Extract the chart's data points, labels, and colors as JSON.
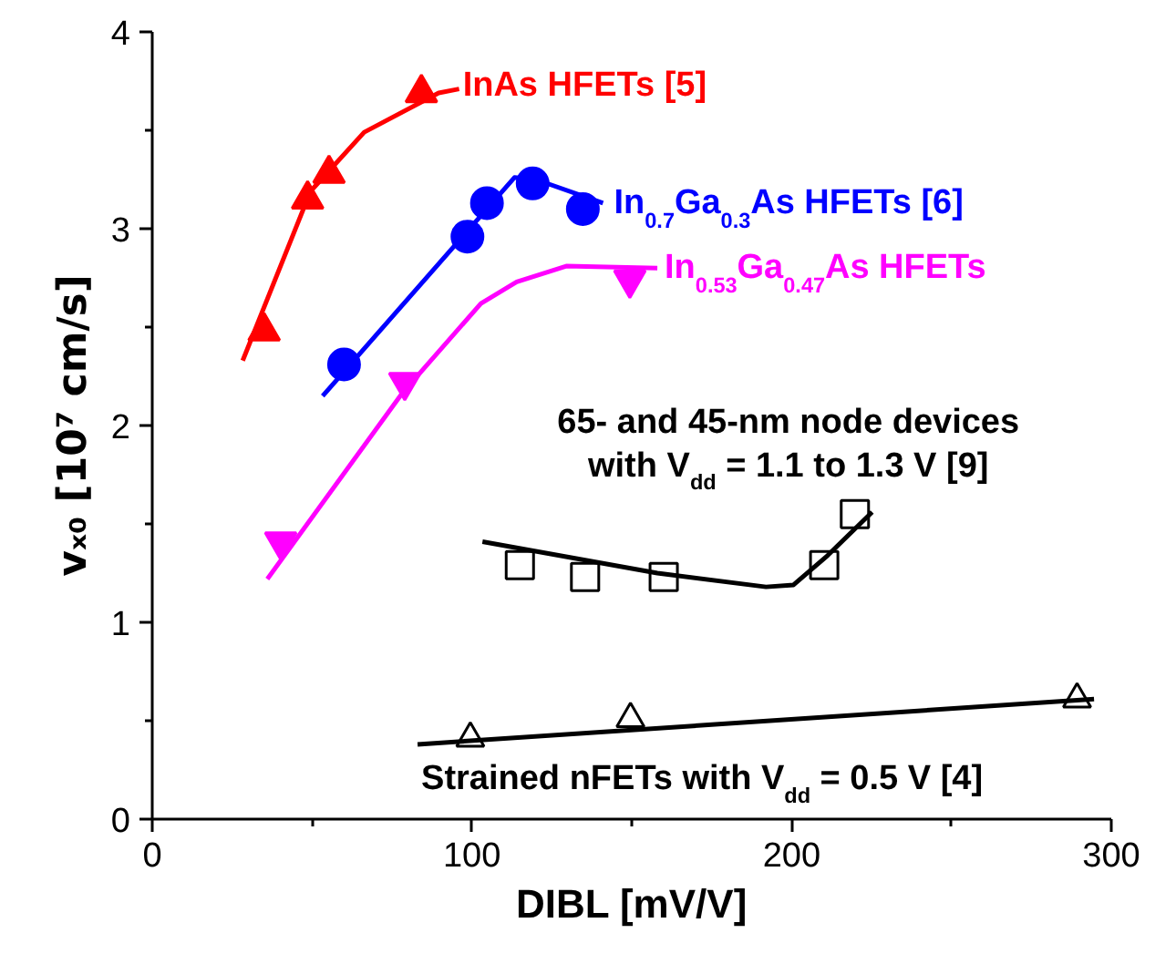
{
  "chart_data": {
    "type": "scatter",
    "xlabel": "DIBL [mV/V]",
    "ylabel": "vₓ₀ [10⁷ cm/s]",
    "xlim": [
      0,
      300
    ],
    "ylim": [
      0,
      4
    ],
    "xticks": [
      0,
      {
        "value": 50,
        "label": null
      },
      100,
      {
        "value": 150,
        "label": null
      },
      200,
      {
        "value": 250,
        "label": null
      },
      300
    ],
    "yticks": [
      0,
      {
        "value": 0.5,
        "label": null
      },
      1,
      {
        "value": 1.5,
        "label": null
      },
      2,
      {
        "value": 2.5,
        "label": null
      },
      3,
      {
        "value": 3.5,
        "label": null
      },
      4
    ],
    "series": [
      {
        "name": "InAs HFETs [5]",
        "color": "#ff0000",
        "marker": "triangle",
        "x": [
          35,
          48.6,
          55.3,
          84.2
        ],
        "values": [
          2.48,
          3.15,
          3.28,
          3.69
        ]
      },
      {
        "color": "#ff0000",
        "type": "line",
        "x": [
          28.3,
          49.5,
          66.3,
          89.6,
          96
        ],
        "values": [
          2.33,
          3.19,
          3.49,
          3.69,
          3.71
        ]
      },
      {
        "name": "In$_{0.7}$Ga$_{0.3}$As HFETs [6]",
        "color": "#0000ff",
        "marker": "circle",
        "x": [
          60,
          98.6,
          104.7,
          119,
          134.7
        ],
        "values": [
          2.31,
          2.96,
          3.13,
          3.23,
          3.1
        ]
      },
      {
        "color": "#0000ff",
        "type": "line",
        "x": [
          53.3,
          113.3,
          120,
          141
        ],
        "values": [
          2.15,
          3.26,
          3.25,
          3.13
        ]
      },
      {
        "name": "In$_{0.53}$Ga$_{0.47}$As HFETs",
        "color": "#ff00ff",
        "marker": "triangle",
        "x": [
          40.2,
          79,
          149.4
        ],
        "values": [
          1.41,
          2.22,
          2.74
        ]
      },
      {
        "color": "#ff00ff",
        "type": "line",
        "x": [
          36,
          78,
          102.8,
          114,
          129.5,
          158
        ],
        "values": [
          1.22,
          2.16,
          2.62,
          2.73,
          2.81,
          2.8
        ]
      },
      {
        "name": "65- and 45-nm node devices\nwith V$_{dd}$ = 1.1 to 1.3 V [9]",
        "color": "#000000",
        "marker": "square",
        "x": [
          115,
          135.4,
          160,
          210.2,
          219.8
        ],
        "values": [
          1.29,
          1.23,
          1.23,
          1.29,
          1.55
        ]
      },
      {
        "color": "#000000",
        "type": "line",
        "x": [
          103.3,
          158,
          192,
          200.6,
          211.3,
          225.2
        ],
        "values": [
          1.41,
          1.25,
          1.18,
          1.19,
          1.34,
          1.56
        ]
      },
      {
        "name": "Strained nFETs with V$_{dd}$ = 0.5 V [4]",
        "color": "#000000",
        "marker": "triangle",
        "x": [
          99.5,
          149.6,
          289.3
        ],
        "values": [
          0.41,
          0.51,
          0.61
        ]
      },
      {
        "color": "#000000",
        "type": "line",
        "x": [
          83,
          294.6
        ],
        "values": [
          0.38,
          0.61
        ]
      }
    ]
  }
}
